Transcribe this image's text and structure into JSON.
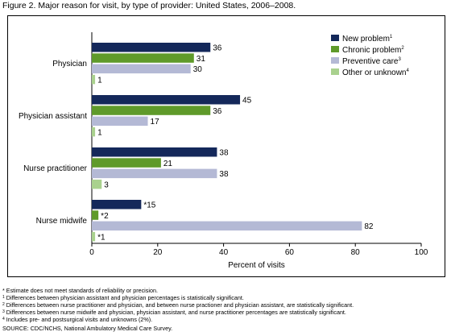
{
  "title": "Figure 2. Major reason for visit, by type of provider: United States, 2006–2008.",
  "chart_data": {
    "type": "bar",
    "orientation": "horizontal",
    "categories": [
      "Physician",
      "Physician assistant",
      "Nurse practitioner",
      "Nurse midwife"
    ],
    "series": [
      {
        "name": "New problem",
        "sup": "1",
        "color": "#14285a",
        "values": [
          36,
          45,
          38,
          15
        ],
        "labels": [
          "36",
          "45",
          "38",
          "*15"
        ]
      },
      {
        "name": "Chronic problem",
        "sup": "2",
        "color": "#5f9a2a",
        "values": [
          31,
          36,
          21,
          2
        ],
        "labels": [
          "31",
          "36",
          "21",
          "*2"
        ]
      },
      {
        "name": "Preventive care",
        "sup": "3",
        "color": "#b4b9d5",
        "values": [
          30,
          17,
          38,
          82
        ],
        "labels": [
          "30",
          "17",
          "38",
          "82"
        ]
      },
      {
        "name": "Other or unknown",
        "sup": "4",
        "color": "#a9d18e",
        "values": [
          1,
          1,
          3,
          1
        ],
        "labels": [
          "1",
          "1",
          "3",
          "*1"
        ]
      }
    ],
    "xlabel": "Percent of visits",
    "xlim": [
      0,
      100
    ],
    "xticks": [
      0,
      20,
      40,
      60,
      80,
      100
    ],
    "grid": false,
    "legend": "top-right"
  },
  "footnotes": [
    {
      "sup": "",
      "text": "* Estimate does not meet standards of reliability or precision."
    },
    {
      "sup": "1",
      "text": " Differences between physician assistant and physician percentages is statistically significant."
    },
    {
      "sup": "2",
      "text": " Differences between nurse practitioner and physician, and between nurse practioner and physician assistant, are statistically significant."
    },
    {
      "sup": "3",
      "text": " Differences between nurse midwife and physician, physician assistant, and nurse practitioner percentages are statistically significant."
    },
    {
      "sup": "4",
      "text": " Includes pre- and postsurgical visits and unknowns (2%)."
    }
  ],
  "source": "SOURCE: CDC/NCHS, National Ambulatory Medical Care Survey."
}
